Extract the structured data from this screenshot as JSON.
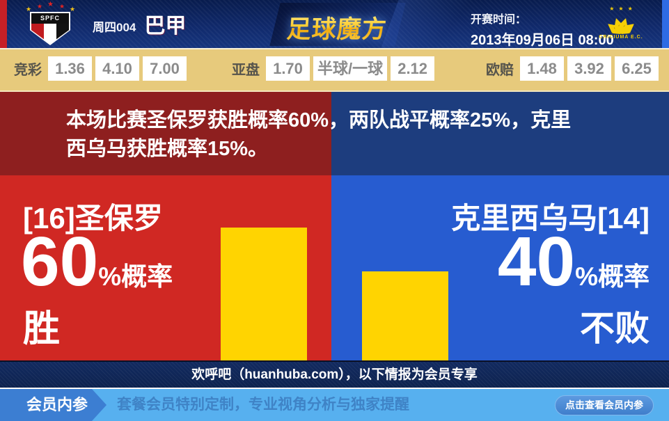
{
  "header": {
    "match_code": "周四004",
    "league": "巴甲",
    "site_logo": "足球魔方",
    "kickoff_label": "开赛时间：",
    "kickoff_time": "2013年09月06日 08:00",
    "home_badge_text": "SPFC",
    "away_badge_text": "CRICIUMA E.C.",
    "star_glyph": "★"
  },
  "odds": {
    "groups": [
      {
        "label": "竞彩",
        "values": [
          "1.36",
          "4.10",
          "7.00"
        ]
      },
      {
        "label": "亚盘",
        "values": [
          "1.70",
          "半球/一球",
          "2.12"
        ]
      },
      {
        "label": "欧赔",
        "values": [
          "1.48",
          "3.92",
          "6.25"
        ]
      }
    ]
  },
  "summary": {
    "line1": "本场比赛圣保罗获胜概率60%，两队战平概率25%，克里",
    "line2": "西乌马获胜概率15%。"
  },
  "panels": {
    "home": {
      "team": "[16]圣保罗",
      "probability": "60",
      "suffix": "%概率",
      "outcome": "胜",
      "bar_percent": 60
    },
    "away": {
      "team": "克里西乌马[14]",
      "probability": "40",
      "suffix": "%概率",
      "outcome": "不败",
      "bar_percent": 40
    }
  },
  "promo": {
    "text": "欢呼吧（huanhuba.com），以下情报为会员专享"
  },
  "footer": {
    "tag": "会员内参",
    "description": "套餐会员特别定制，专业视角分析与独家提醒",
    "button": "点击查看会员内参"
  },
  "colors": {
    "home_red": "#d02823",
    "away_blue": "#275cd0",
    "bar_yellow": "#ffd401",
    "band_maroon": "#8e1f1f",
    "band_navy": "#1d3d7e",
    "odds_tan": "#e7ca7c",
    "footer_blue": "#57b0ef",
    "header_navy": "#10296b"
  }
}
